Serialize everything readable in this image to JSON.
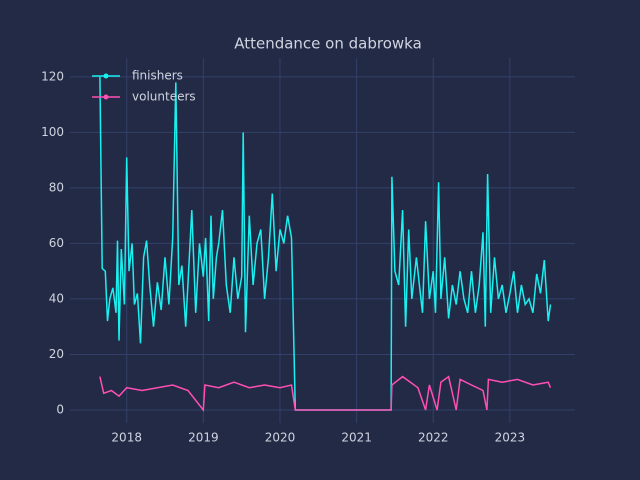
{
  "chart_data": {
    "type": "line",
    "title": "Attendance on dabrowka",
    "xlim": [
      2017.26,
      2023.85
    ],
    "xticks": [
      2018,
      2019,
      2020,
      2021,
      2022,
      2023
    ],
    "ylim": [
      -4.7,
      126.8
    ],
    "yticks": [
      0,
      20,
      40,
      60,
      80,
      100,
      120
    ],
    "grid": true,
    "legend": "upper left",
    "series": [
      {
        "name": "finishers",
        "color": "#19f0f0",
        "x": [
          2017.65,
          2017.68,
          2017.72,
          2017.75,
          2017.78,
          2017.82,
          2017.86,
          2017.88,
          2017.9,
          2017.93,
          2017.97,
          2018.0,
          2018.03,
          2018.07,
          2018.1,
          2018.14,
          2018.18,
          2018.22,
          2018.26,
          2018.3,
          2018.35,
          2018.4,
          2018.45,
          2018.5,
          2018.55,
          2018.6,
          2018.64,
          2018.68,
          2018.72,
          2018.77,
          2018.85,
          2018.9,
          2018.95,
          2019.0,
          2019.03,
          2019.07,
          2019.1,
          2019.13,
          2019.17,
          2019.2,
          2019.25,
          2019.3,
          2019.35,
          2019.4,
          2019.45,
          2019.5,
          2019.52,
          2019.55,
          2019.6,
          2019.65,
          2019.7,
          2019.75,
          2019.8,
          2019.85,
          2019.9,
          2019.95,
          2020.0,
          2020.05,
          2020.1,
          2020.15,
          2020.2,
          2021.45,
          2021.46,
          2021.5,
          2021.55,
          2021.6,
          2021.64,
          2021.68,
          2021.72,
          2021.78,
          2021.82,
          2021.86,
          2021.9,
          2021.95,
          2022.0,
          2022.03,
          2022.07,
          2022.1,
          2022.15,
          2022.2,
          2022.25,
          2022.3,
          2022.35,
          2022.4,
          2022.45,
          2022.5,
          2022.55,
          2022.6,
          2022.65,
          2022.68,
          2022.71,
          2022.75,
          2022.8,
          2022.85,
          2022.9,
          2022.95,
          2023.0,
          2023.05,
          2023.1,
          2023.15,
          2023.2,
          2023.25,
          2023.3,
          2023.35,
          2023.4,
          2023.45,
          2023.5,
          2023.53
        ],
        "values": [
          120,
          51,
          50,
          32,
          40,
          44,
          35,
          61,
          25,
          58,
          38,
          91,
          50,
          60,
          38,
          42,
          24,
          55,
          61,
          45,
          30,
          46,
          36,
          55,
          38,
          62,
          118,
          45,
          52,
          30,
          72,
          35,
          60,
          48,
          62,
          32,
          70,
          40,
          55,
          60,
          72,
          45,
          35,
          55,
          40,
          48,
          100,
          28,
          70,
          45,
          60,
          65,
          40,
          55,
          78,
          50,
          65,
          60,
          70,
          62,
          0,
          0,
          84,
          50,
          45,
          72,
          30,
          65,
          40,
          55,
          45,
          35,
          68,
          40,
          50,
          35,
          82,
          40,
          55,
          33,
          45,
          38,
          50,
          40,
          35,
          50,
          35,
          45,
          64,
          30,
          85,
          35,
          55,
          40,
          45,
          35,
          42,
          50,
          35,
          45,
          38,
          40,
          35,
          49,
          42,
          54,
          32,
          38
        ]
      },
      {
        "name": "volunteers",
        "color": "#ff4fb4",
        "x": [
          2017.65,
          2017.7,
          2017.8,
          2017.9,
          2018.0,
          2018.2,
          2018.4,
          2018.6,
          2018.8,
          2019.0,
          2019.02,
          2019.2,
          2019.4,
          2019.6,
          2019.8,
          2020.0,
          2020.15,
          2020.2,
          2021.45,
          2021.46,
          2021.6,
          2021.8,
          2021.9,
          2021.95,
          2022.05,
          2022.1,
          2022.2,
          2022.3,
          2022.35,
          2022.5,
          2022.65,
          2022.7,
          2022.72,
          2022.9,
          2023.1,
          2023.3,
          2023.5,
          2023.53
        ],
        "values": [
          12,
          6,
          7,
          5,
          8,
          7,
          8,
          9,
          7,
          0,
          9,
          8,
          10,
          8,
          9,
          8,
          9,
          0,
          0,
          9,
          12,
          8,
          0,
          9,
          0,
          10,
          12,
          0,
          11,
          9,
          7,
          0,
          11,
          10,
          11,
          9,
          10,
          8
        ]
      }
    ]
  }
}
